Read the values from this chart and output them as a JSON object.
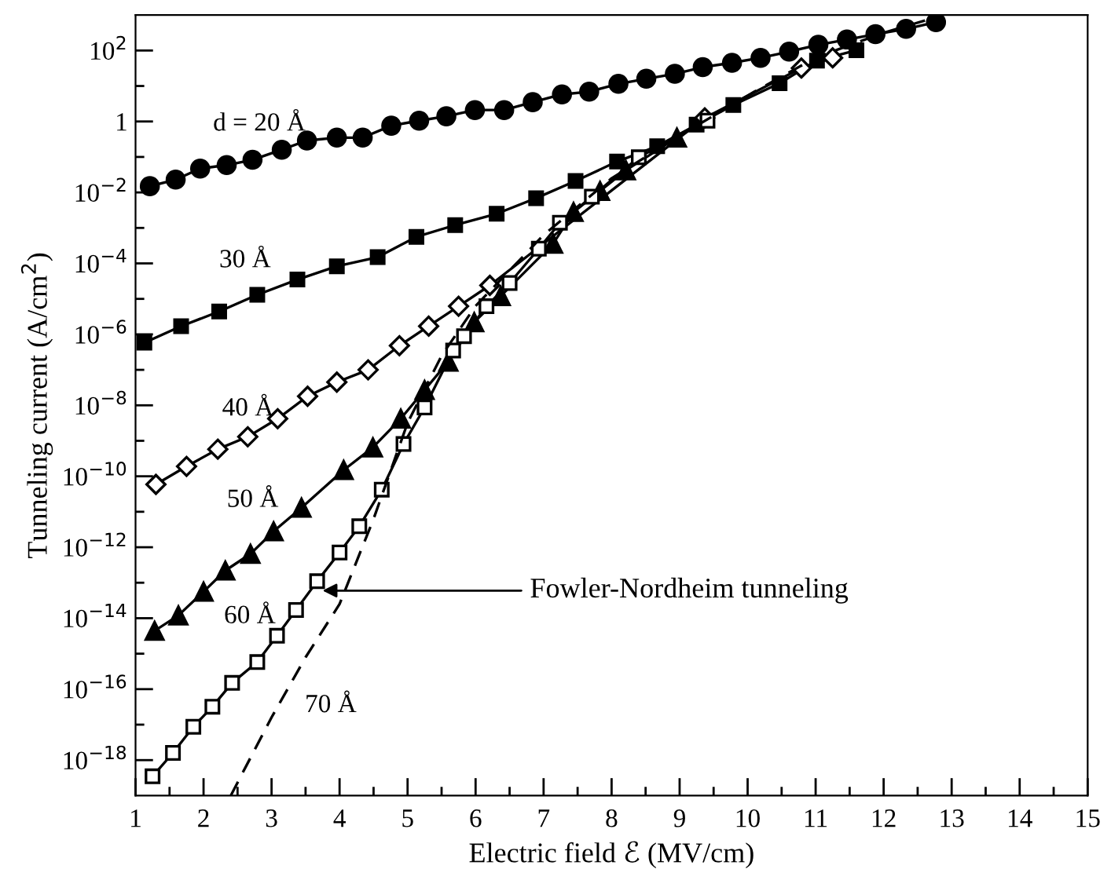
{
  "chart_data": {
    "type": "line",
    "xlabel": "Electric field ℰ (MV/cm)",
    "ylabel": "Tunneling current (A/cm$^{2}$)",
    "log": "y",
    "grid": false,
    "legend": false,
    "xlim": [
      1,
      15
    ],
    "ylim": [
      1e-19,
      1000
    ],
    "xticks": [
      1,
      {
        "value": 1.5,
        "label": null
      },
      2,
      {
        "value": 2.5,
        "label": null
      },
      3,
      {
        "value": 3.5,
        "label": null
      },
      4,
      {
        "value": 4.5,
        "label": null
      },
      5,
      {
        "value": 5.5,
        "label": null
      },
      6,
      {
        "value": 6.5,
        "label": null
      },
      7,
      {
        "value": 7.5,
        "label": null
      },
      8,
      {
        "value": 8.5,
        "label": null
      },
      9,
      {
        "value": 9.5,
        "label": null
      },
      10,
      {
        "value": 10.5,
        "label": null
      },
      11,
      {
        "value": 11.5,
        "label": null
      },
      12,
      {
        "value": 12.5,
        "label": null
      },
      13,
      {
        "value": 13.5,
        "label": null
      },
      14,
      {
        "value": 14.5,
        "label": null
      },
      15
    ],
    "yticks": [
      {
        "value": 100,
        "label": "10$^{2}$"
      },
      {
        "value": 10,
        "label": null
      },
      1,
      {
        "value": 0.1,
        "label": null
      },
      {
        "value": 0.01,
        "label": "10$^{−2}$"
      },
      {
        "value": 0.001,
        "label": null
      },
      {
        "value": 0.0001,
        "label": "10$^{−4}$"
      },
      {
        "value": 1e-05,
        "label": null
      },
      {
        "value": 1e-06,
        "label": "10$^{−6}$"
      },
      {
        "value": 1e-07,
        "label": null
      },
      {
        "value": 1e-08,
        "label": "10$^{−8}$"
      },
      {
        "value": 1e-09,
        "label": null
      },
      {
        "value": 1e-10,
        "label": "10$^{−10}$"
      },
      {
        "value": 1e-11,
        "label": null
      },
      {
        "value": 1e-12,
        "label": "10$^{−12}$"
      },
      {
        "value": 1e-13,
        "label": null
      },
      {
        "value": 1e-14,
        "label": "10$^{−14}$"
      },
      {
        "value": 1e-15,
        "label": null
      },
      {
        "value": 1e-16,
        "label": "10$^{−16}$"
      },
      {
        "value": 1e-17,
        "label": null
      },
      {
        "value": 1e-18,
        "label": "10$^{−18}$"
      }
    ],
    "annotations": [
      {
        "text": "Fowler-Nordheim tunneling",
        "x": 3.75,
        "y": 6e-14
      }
    ],
    "series": [
      {
        "name": "d = 20 Å",
        "color": "#000000",
        "marker": "circle",
        "line_style": "solid",
        "x": [
          1.21,
          1.59,
          1.95,
          2.34,
          2.72,
          3.15,
          3.52,
          3.96,
          4.34,
          4.76,
          5.17,
          5.57,
          5.99,
          6.42,
          6.84,
          7.27,
          7.67,
          8.1,
          8.51,
          8.93,
          9.34,
          9.77,
          10.19,
          10.61,
          11.04,
          11.46,
          11.88,
          12.33,
          12.77
        ],
        "values": [
          0.015,
          0.023,
          0.047,
          0.059,
          0.083,
          0.16,
          0.29,
          0.35,
          0.35,
          0.76,
          1.05,
          1.4,
          2.1,
          2.1,
          3.5,
          5.8,
          6.9,
          11.5,
          16,
          22,
          34,
          45,
          62,
          93,
          145,
          204,
          288,
          407,
          631
        ]
      },
      {
        "name": "30 Å",
        "color": "#000000",
        "marker": "square",
        "line_style": "solid",
        "x": [
          1.13,
          1.67,
          2.23,
          2.79,
          3.38,
          3.96,
          4.56,
          5.13,
          5.7,
          6.31,
          6.89,
          7.47,
          8.08,
          8.67,
          9.25,
          9.79,
          10.47,
          11.02,
          11.6
        ],
        "values": [
          5.8e-07,
          1.7e-06,
          4.4e-06,
          1.3e-05,
          3.5e-05,
          8.3e-05,
          0.00015,
          0.00056,
          0.0012,
          0.0025,
          0.0069,
          0.021,
          0.074,
          0.2,
          0.81,
          2.9,
          12,
          52,
          102
        ]
      },
      {
        "name": "40 Å",
        "color": "#000000",
        "marker": "diamond",
        "line_style": "solid",
        "x": [
          1.3,
          1.75,
          2.21,
          2.65,
          3.09,
          3.53,
          3.96,
          4.42,
          4.88,
          5.31,
          5.75,
          6.21,
          9.37,
          10.79,
          11.25
        ],
        "values": [
          5.9e-11,
          1.9e-10,
          5.8e-10,
          1.3e-09,
          4.2e-09,
          1.8e-08,
          4.5e-08,
          1e-07,
          4.8e-07,
          1.7e-06,
          6.2e-06,
          2.4e-05,
          1.26,
          32,
          62
        ]
      },
      {
        "name": "50 Å",
        "color": "#000000",
        "marker": "triangle",
        "line_style": "solid",
        "x": [
          1.28,
          1.63,
          2.0,
          2.32,
          2.69,
          3.03,
          3.44,
          4.06,
          4.49,
          4.9,
          5.25,
          5.6,
          5.98,
          6.37,
          7.14,
          7.44,
          7.83,
          8.21,
          8.96
        ],
        "values": [
          4.4e-15,
          1.2e-14,
          5.6e-14,
          2.2e-13,
          6.5e-13,
          2.8e-12,
          1.3e-11,
          1.5e-10,
          6.5e-10,
          4.2e-09,
          2.7e-08,
          1.7e-07,
          2.2e-06,
          1.2e-05,
          0.00036,
          0.0028,
          0.011,
          0.042,
          0.35
        ]
      },
      {
        "name": "60 Å",
        "color": "#000000",
        "marker": "square",
        "line_style": "solid",
        "x": [
          1.25,
          1.55,
          1.85,
          2.13,
          2.42,
          2.79,
          3.08,
          3.36,
          3.67,
          4.0,
          4.29,
          4.62,
          4.94,
          5.25,
          5.67,
          5.83,
          6.16,
          6.5,
          6.93,
          7.24,
          7.71,
          8.4,
          9.41
        ],
        "values": [
          3.5e-19,
          1.6e-18,
          8.7e-18,
          3.2e-17,
          1.5e-16,
          5.8e-16,
          3.2e-15,
          1.7e-14,
          1.1e-13,
          7.1e-13,
          3.9e-12,
          4.2e-11,
          8.1e-10,
          8.7e-09,
          3.5e-07,
          8.9e-07,
          6.2e-06,
          2.8e-05,
          0.00026,
          0.0014,
          0.0076,
          0.098,
          1.05
        ]
      },
      {
        "name": "70 Å",
        "color": "#000000",
        "marker": "none",
        "line_style": "dashed",
        "x": [
          2.4,
          3.0,
          3.5,
          4.0,
          4.5,
          5.0,
          5.5,
          6.0,
          7.0,
          8.0,
          9.0,
          10.1,
          11.0,
          12.0,
          12.7
        ],
        "values": [
          1e-19,
          1.6e-17,
          7.9e-16,
          2.5e-14,
          6.3e-12,
          3.2e-09,
          2.5e-07,
          6.3e-06,
          0.00063,
          0.025,
          0.4,
          6.9,
          63,
          316,
          794
        ]
      }
    ]
  }
}
